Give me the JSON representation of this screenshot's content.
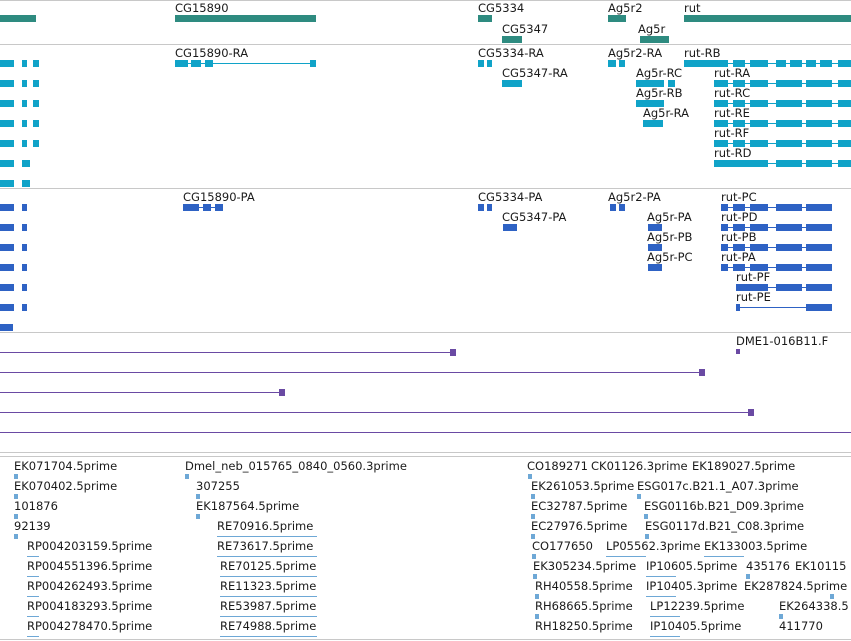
{
  "colors": {
    "gene": "#2e8b80",
    "transcript": "#10a3c8",
    "protein": "#2e62c4",
    "alignment": "#6a4aa3",
    "est": "#6ea8d6",
    "divider": "#c8c8c8"
  },
  "genes": [
    {
      "label": "CG15890"
    },
    {
      "label": "CG5334"
    },
    {
      "label": "CG5347"
    },
    {
      "label": "Ag5r2"
    },
    {
      "label": "Ag5r"
    },
    {
      "label": "rut"
    }
  ],
  "transcripts": [
    {
      "label": "CG15890-RA"
    },
    {
      "label": "CG5334-RA"
    },
    {
      "label": "CG5347-RA"
    },
    {
      "label": "Ag5r2-RA"
    },
    {
      "label": "rut-RB"
    },
    {
      "label": "Ag5r-RC"
    },
    {
      "label": "Ag5r-RB"
    },
    {
      "label": "Ag5r-RA"
    },
    {
      "label": "rut-RA"
    },
    {
      "label": "rut-RC"
    },
    {
      "label": "rut-RE"
    },
    {
      "label": "rut-RF"
    },
    {
      "label": "rut-RD"
    }
  ],
  "proteins": [
    {
      "label": "CG15890-PA"
    },
    {
      "label": "CG5334-PA"
    },
    {
      "label": "CG5347-PA"
    },
    {
      "label": "Ag5r2-PA"
    },
    {
      "label": "rut-PC"
    },
    {
      "label": "Ag5r-PA"
    },
    {
      "label": "rut-PD"
    },
    {
      "label": "Ag5r-PB"
    },
    {
      "label": "rut-PB"
    },
    {
      "label": "Ag5r-PC"
    },
    {
      "label": "rut-PA"
    },
    {
      "label": "rut-PF"
    },
    {
      "label": "rut-PE"
    }
  ],
  "alignments": [
    {
      "label": "DME1-016B11.F"
    }
  ],
  "ests": [
    {
      "label": "EK071704.5prime"
    },
    {
      "label": "Dmel_neb_015765_0840_0560.3prime"
    },
    {
      "label": "CO189271"
    },
    {
      "label": "CK01126.3prime"
    },
    {
      "label": "EK189027.5prime"
    },
    {
      "label": "EK070402.5prime"
    },
    {
      "label": "307255"
    },
    {
      "label": "EK261053.5prime"
    },
    {
      "label": "ESG017c.B21.1_A07.3prime"
    },
    {
      "label": "101876"
    },
    {
      "label": "EK187564.5prime"
    },
    {
      "label": "EC32787.5prime"
    },
    {
      "label": "ESG0116b.B21_D09.3prime"
    },
    {
      "label": "92139"
    },
    {
      "label": "RE70916.5prime"
    },
    {
      "label": "EC27976.5prime"
    },
    {
      "label": "ESG0117d.B21_C08.3prime"
    },
    {
      "label": "RP004203159.5prime"
    },
    {
      "label": "RE73617.5prime"
    },
    {
      "label": "CO177650"
    },
    {
      "label": "LP05562.3prime"
    },
    {
      "label": "EK133003.5prime"
    },
    {
      "label": "RP004551396.5prime"
    },
    {
      "label": "RE70125.5prime"
    },
    {
      "label": "EK305234.5prime"
    },
    {
      "label": "IP10605.5prime"
    },
    {
      "label": "435176"
    },
    {
      "label": "EK10115"
    },
    {
      "label": "RP004262493.5prime"
    },
    {
      "label": "RE11323.5prime"
    },
    {
      "label": "RH40558.5prime"
    },
    {
      "label": "IP10405.3prime"
    },
    {
      "label": "EK287824.5prime"
    },
    {
      "label": "RP004183293.5prime"
    },
    {
      "label": "RE53987.5prime"
    },
    {
      "label": "RH68665.5prime"
    },
    {
      "label": "LP12239.5prime"
    },
    {
      "label": "EK264338.5"
    },
    {
      "label": "RP004278470.5prime"
    },
    {
      "label": "RE74988.5prime"
    },
    {
      "label": "RH18250.5prime"
    },
    {
      "label": "IP10405.5prime"
    },
    {
      "label": "411770"
    }
  ]
}
